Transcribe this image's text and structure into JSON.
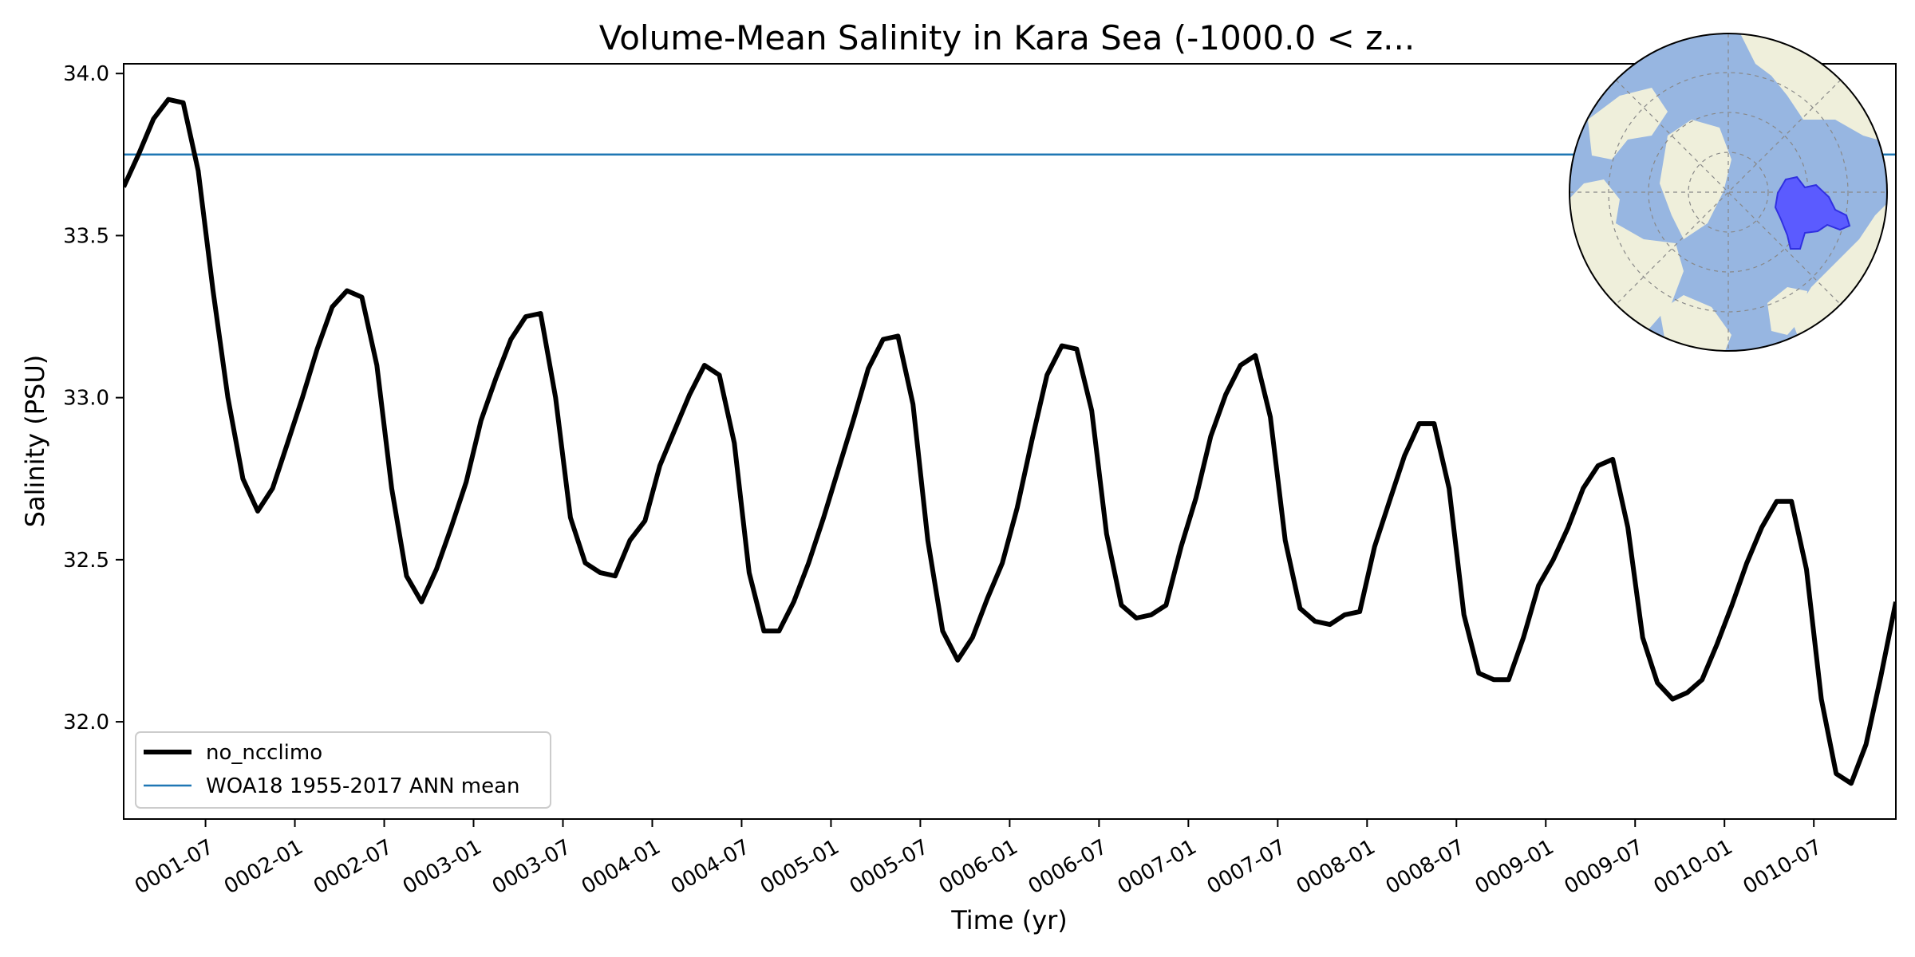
{
  "chart_data": {
    "type": "line",
    "title": "Volume-Mean Salinity in Kara Sea (-1000.0 < z...",
    "xlabel": "Time (yr)",
    "ylabel": "Salinity (PSU)",
    "xlim": [
      0.0,
      9.917
    ],
    "ylim": [
      31.7,
      34.03
    ],
    "yticks": [
      32.0,
      32.5,
      33.0,
      33.5,
      34.0
    ],
    "ytick_labels": [
      "32.0",
      "32.5",
      "33.0",
      "33.5",
      "34.0"
    ],
    "xticks": [
      0.458,
      0.958,
      1.458,
      1.958,
      2.458,
      2.958,
      3.458,
      3.958,
      4.458,
      4.958,
      5.458,
      5.958,
      6.458,
      6.958,
      7.458,
      7.958,
      8.458,
      8.958,
      9.458
    ],
    "xtick_labels": [
      "0001-07",
      "0002-01",
      "0002-07",
      "0003-01",
      "0003-07",
      "0004-01",
      "0004-07",
      "0005-01",
      "0005-07",
      "0006-01",
      "0006-07",
      "0007-01",
      "0007-07",
      "0008-01",
      "0008-07",
      "0009-01",
      "0009-07",
      "0010-01",
      "0010-07"
    ],
    "series": [
      {
        "name": "no_ncclimo",
        "color": "#000000",
        "x": [
          0.0,
          0.083,
          0.167,
          0.25,
          0.333,
          0.417,
          0.5,
          0.583,
          0.667,
          0.75,
          0.833,
          0.917,
          1.0,
          1.083,
          1.167,
          1.25,
          1.333,
          1.417,
          1.5,
          1.583,
          1.667,
          1.75,
          1.833,
          1.917,
          2.0,
          2.083,
          2.167,
          2.25,
          2.333,
          2.417,
          2.5,
          2.583,
          2.667,
          2.75,
          2.833,
          2.917,
          3.0,
          3.083,
          3.167,
          3.25,
          3.333,
          3.417,
          3.5,
          3.583,
          3.667,
          3.75,
          3.833,
          3.917,
          4.0,
          4.083,
          4.167,
          4.25,
          4.333,
          4.417,
          4.5,
          4.583,
          4.667,
          4.75,
          4.833,
          4.917,
          5.0,
          5.083,
          5.167,
          5.25,
          5.333,
          5.417,
          5.5,
          5.583,
          5.667,
          5.75,
          5.833,
          5.917,
          6.0,
          6.083,
          6.167,
          6.25,
          6.333,
          6.417,
          6.5,
          6.583,
          6.667,
          6.75,
          6.833,
          6.917,
          7.0,
          7.083,
          7.167,
          7.25,
          7.333,
          7.417,
          7.5,
          7.583,
          7.667,
          7.75,
          7.833,
          7.917,
          8.0,
          8.083,
          8.167,
          8.25,
          8.333,
          8.417,
          8.5,
          8.583,
          8.667,
          8.75,
          8.833,
          8.917,
          9.0,
          9.083,
          9.167,
          9.25,
          9.333,
          9.417,
          9.5,
          9.583,
          9.667,
          9.75,
          9.833,
          9.917
        ],
        "values": [
          33.65,
          33.75,
          33.86,
          33.92,
          33.91,
          33.7,
          33.33,
          33.0,
          32.75,
          32.65,
          32.72,
          32.86,
          33.0,
          33.15,
          33.28,
          33.33,
          33.31,
          33.1,
          32.72,
          32.45,
          32.37,
          32.47,
          32.6,
          32.74,
          32.93,
          33.06,
          33.18,
          33.25,
          33.26,
          33.0,
          32.63,
          32.49,
          32.46,
          32.45,
          32.56,
          32.62,
          32.79,
          32.9,
          33.01,
          33.1,
          33.07,
          32.86,
          32.46,
          32.28,
          32.28,
          32.37,
          32.49,
          32.63,
          32.78,
          32.93,
          33.09,
          33.18,
          33.19,
          32.98,
          32.56,
          32.28,
          32.19,
          32.26,
          32.38,
          32.49,
          32.66,
          32.87,
          33.07,
          33.16,
          33.15,
          32.96,
          32.58,
          32.36,
          32.32,
          32.33,
          32.36,
          32.54,
          32.69,
          32.88,
          33.01,
          33.1,
          33.13,
          32.94,
          32.56,
          32.35,
          32.31,
          32.3,
          32.33,
          32.34,
          32.54,
          32.68,
          32.82,
          32.92,
          32.92,
          32.72,
          32.33,
          32.15,
          32.13,
          32.13,
          32.26,
          32.42,
          32.5,
          32.6,
          32.72,
          32.79,
          32.81,
          32.6,
          32.26,
          32.12,
          32.07,
          32.09,
          32.13,
          32.24,
          32.36,
          32.49,
          32.6,
          32.68,
          32.68,
          32.47,
          32.07,
          31.84,
          31.81,
          31.93,
          32.14,
          32.37
        ]
      },
      {
        "name": "WOA18 1955-2017 ANN mean",
        "color": "#1f77b4",
        "constant": 33.75
      }
    ],
    "legend_position": "lower-left",
    "inset": "north-polar-map-with-kara-sea-highlighted"
  },
  "colors": {
    "ocean": "#97b6e1",
    "land": "#efefdb",
    "region": "#5b5bff"
  }
}
